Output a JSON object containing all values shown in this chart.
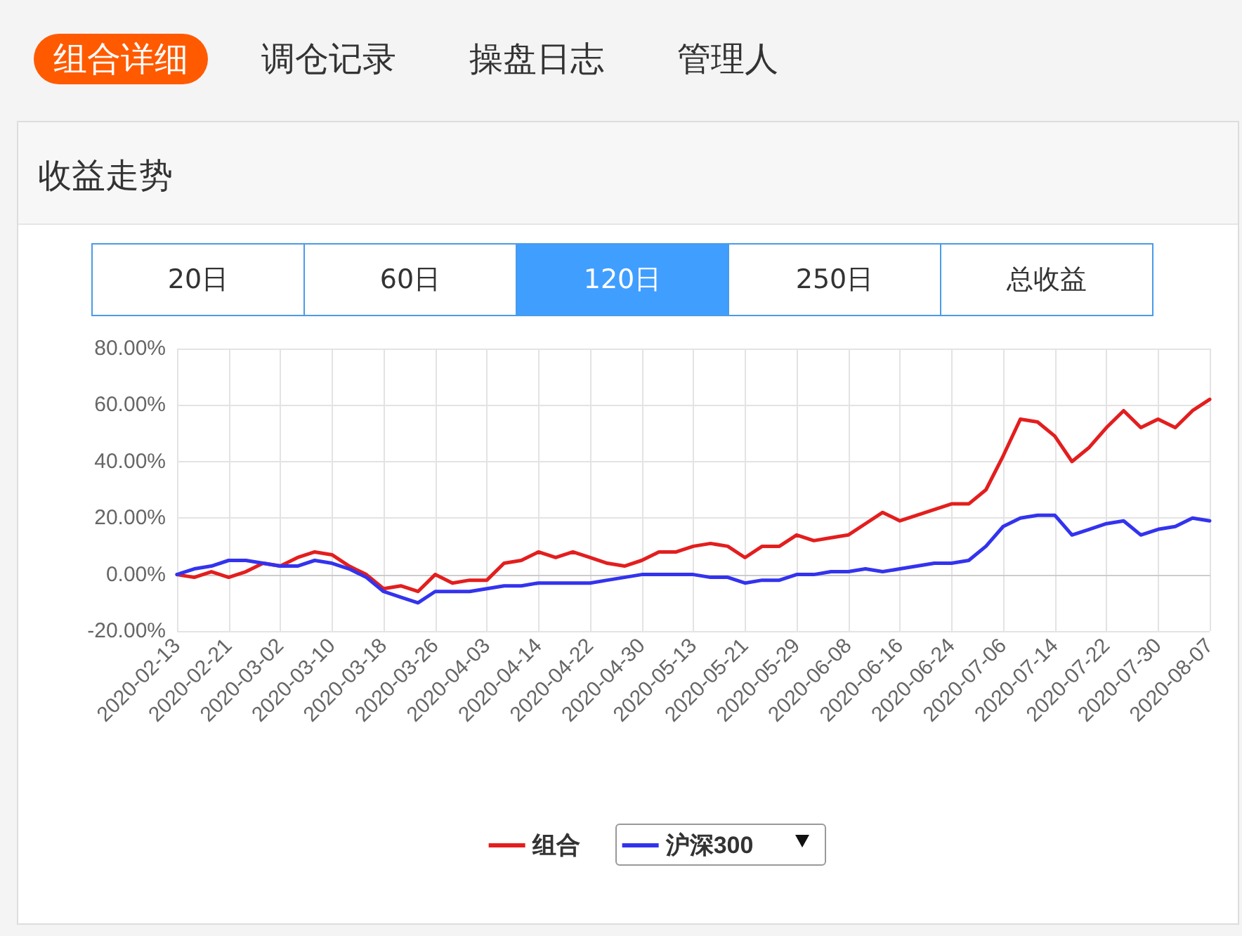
{
  "chart_data": {
    "type": "line",
    "title": "收益走势",
    "annotations": [
      "组合详细",
      "调仓记录",
      "操盘日志",
      "管理人",
      "20日",
      "60日",
      "120日",
      "250日",
      "总收益"
    ],
    "categories": [
      "2020-02-13",
      null,
      null,
      "2020-02-21",
      null,
      null,
      "2020-03-02",
      null,
      null,
      "2020-03-10",
      null,
      null,
      "2020-03-18",
      null,
      null,
      "2020-03-26",
      null,
      null,
      "2020-04-03",
      null,
      null,
      "2020-04-14",
      null,
      null,
      "2020-04-22",
      null,
      null,
      "2020-04-30",
      null,
      null,
      "2020-05-13",
      null,
      null,
      "2020-05-21",
      null,
      null,
      "2020-05-29",
      null,
      null,
      "2020-06-08",
      null,
      null,
      "2020-06-16",
      null,
      null,
      "2020-06-24",
      null,
      null,
      "2020-07-06",
      null,
      null,
      "2020-07-14",
      null,
      null,
      "2020-07-22",
      null,
      null,
      "2020-07-30",
      null,
      null,
      "2020-08-07"
    ],
    "series": [
      {
        "name": "组合",
        "color": "#e31e1e",
        "values": [
          0,
          -1,
          1,
          -1,
          1,
          4,
          3,
          6,
          8,
          7,
          3,
          0,
          -5,
          -4,
          -6,
          0,
          -3,
          -2,
          -2,
          4,
          5,
          8,
          6,
          8,
          6,
          4,
          3,
          5,
          8,
          8,
          10,
          11,
          10,
          6,
          10,
          10,
          14,
          12,
          13,
          14,
          18,
          22,
          19,
          21,
          23,
          25,
          25,
          30,
          42,
          55,
          54,
          49,
          40,
          45,
          52,
          58,
          52,
          55,
          52,
          58,
          62
        ]
      },
      {
        "name": "沪深300",
        "color": "#3333ee",
        "values": [
          0,
          2,
          3,
          5,
          5,
          4,
          3,
          3,
          5,
          4,
          2,
          -1,
          -6,
          -8,
          -10,
          -6,
          -6,
          -6,
          -5,
          -4,
          -4,
          -3,
          -3,
          -3,
          -3,
          -2,
          -1,
          0,
          0,
          0,
          0,
          -1,
          -1,
          -3,
          -2,
          -2,
          0,
          0,
          1,
          1,
          2,
          1,
          2,
          3,
          4,
          4,
          5,
          10,
          17,
          20,
          21,
          21,
          14,
          16,
          18,
          19,
          14,
          16,
          17,
          20,
          19
        ]
      }
    ],
    "ylim": [
      -20,
      80
    ],
    "yticks": [
      {
        "value": -20,
        "label": "-20.00%"
      },
      {
        "value": 0,
        "label": "0.00%"
      },
      {
        "value": 20,
        "label": "20.00%"
      },
      {
        "value": 40,
        "label": "40.00%"
      },
      {
        "value": 60,
        "label": "60.00%"
      },
      {
        "value": 80,
        "label": "80.00%"
      }
    ],
    "grid": true,
    "legend": "bottom",
    "marker": "none",
    "line_style": "solid"
  }
}
